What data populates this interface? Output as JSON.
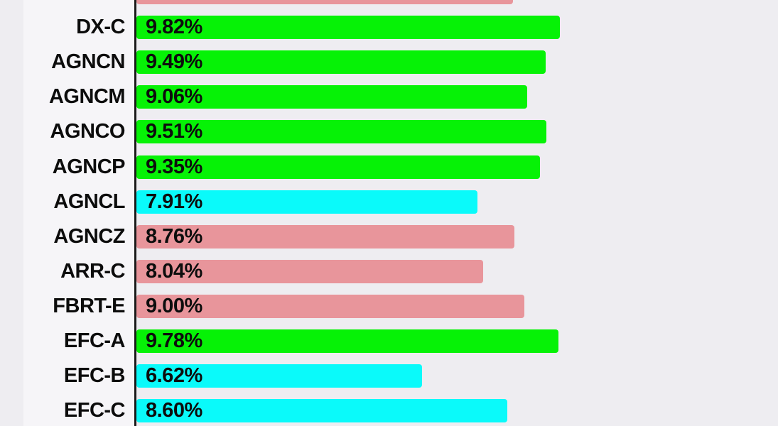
{
  "chart_data": {
    "type": "bar",
    "orientation": "horizontal",
    "title": "",
    "xlabel": "",
    "ylabel": "",
    "xlim": [
      0,
      14.9
    ],
    "grid": false,
    "legend": "none",
    "value_label_position": "inside-start",
    "background_color": "#EEEDF1",
    "label_band_color": "#F6F5F8",
    "axis_color": "#1B1B1B",
    "text_color": "#0C0C0C",
    "palette": {
      "green": "#06F206",
      "cyan": "#0AFAFA",
      "salmon": "#E8959B"
    },
    "categories": [
      "DX-C",
      "AGNCN",
      "AGNCM",
      "AGNCO",
      "AGNCP",
      "AGNCL",
      "AGNCZ",
      "ARR-C",
      "FBRT-E",
      "EFC-A",
      "EFC-B",
      "EFC-C"
    ],
    "values": [
      9.82,
      9.49,
      9.06,
      9.51,
      9.35,
      7.91,
      8.76,
      8.04,
      9.0,
      9.78,
      6.62,
      8.6
    ],
    "partial_top_bar": {
      "approx_value": 8.73,
      "color": "#E8959B",
      "ticker_visible": "",
      "label_visible": ""
    },
    "bars": [
      {
        "ticker": "DX-C",
        "value": 9.82,
        "label": "9.82%",
        "color": "#06F206"
      },
      {
        "ticker": "AGNCN",
        "value": 9.49,
        "label": "9.49%",
        "color": "#06F206"
      },
      {
        "ticker": "AGNCM",
        "value": 9.06,
        "label": "9.06%",
        "color": "#06F206"
      },
      {
        "ticker": "AGNCO",
        "value": 9.51,
        "label": "9.51%",
        "color": "#06F206"
      },
      {
        "ticker": "AGNCP",
        "value": 9.35,
        "label": "9.35%",
        "color": "#06F206"
      },
      {
        "ticker": "AGNCL",
        "value": 7.91,
        "label": "7.91%",
        "color": "#0AFAFA"
      },
      {
        "ticker": "AGNCZ",
        "value": 8.76,
        "label": "8.76%",
        "color": "#E8959B"
      },
      {
        "ticker": "ARR-C",
        "value": 8.04,
        "label": "8.04%",
        "color": "#E8959B"
      },
      {
        "ticker": "FBRT-E",
        "value": 9.0,
        "label": "9.00%",
        "color": "#E8959B"
      },
      {
        "ticker": "EFC-A",
        "value": 9.78,
        "label": "9.78%",
        "color": "#06F206"
      },
      {
        "ticker": "EFC-B",
        "value": 6.62,
        "label": "6.62%",
        "color": "#0AFAFA"
      },
      {
        "ticker": "EFC-C",
        "value": 8.6,
        "label": "8.60%",
        "color": "#0AFAFA"
      }
    ]
  }
}
